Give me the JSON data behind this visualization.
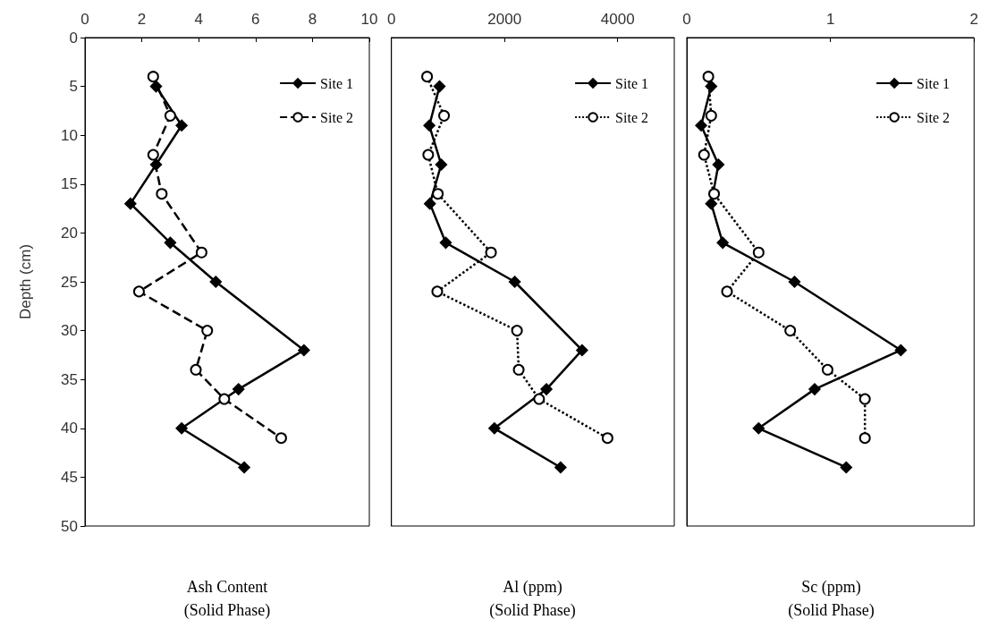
{
  "chart_data": [
    {
      "type": "line",
      "xlabel": "Ash Content\n(Solid Phase)",
      "ylabel": "Depth (cm)",
      "xlim": [
        0,
        10
      ],
      "xticks": [
        0,
        2,
        4,
        6,
        8,
        10
      ],
      "ylim": [
        50,
        0
      ],
      "yticks": [
        0,
        5,
        10,
        15,
        20,
        25,
        30,
        35,
        40,
        45,
        50
      ],
      "grid": false,
      "legend": "top right",
      "series": [
        {
          "name": "Site 1",
          "color": "#000000",
          "marker": "diamond",
          "line_style": "solid",
          "x": [
            2.5,
            3.4,
            2.5,
            1.6,
            3.0,
            4.6,
            7.7,
            5.4,
            3.4,
            5.6
          ],
          "values": [
            5,
            9,
            13,
            17,
            21,
            25,
            32,
            36,
            40,
            44
          ]
        },
        {
          "name": "Site 2",
          "color": "#000000",
          "marker": "circle",
          "line_style": "dashed",
          "x": [
            2.4,
            3.0,
            2.4,
            2.7,
            4.1,
            1.9,
            4.3,
            3.9,
            4.9,
            6.9
          ],
          "values": [
            4,
            8,
            12,
            16,
            22,
            26,
            30,
            34,
            37,
            41
          ]
        }
      ]
    },
    {
      "type": "line",
      "xlabel": "Al (ppm)\n(Solid Phase)",
      "xlim": [
        0,
        5000
      ],
      "xticks": [
        0,
        2000,
        4000
      ],
      "ylim": [
        50,
        0
      ],
      "tick_labels": "x",
      "grid": false,
      "legend": "top right",
      "series": [
        {
          "name": "Site 1",
          "color": "#000000",
          "marker": "diamond",
          "line_style": "solid",
          "x": [
            850,
            670,
            880,
            680,
            960,
            2180,
            3370,
            2740,
            1820,
            2990
          ],
          "values": [
            5,
            9,
            13,
            17,
            21,
            25,
            32,
            36,
            40,
            44
          ]
        },
        {
          "name": "Site 2",
          "color": "#000000",
          "marker": "circle",
          "line_style": "dotted",
          "x": [
            630,
            930,
            650,
            820,
            1760,
            810,
            2220,
            2250,
            2610,
            3820
          ],
          "values": [
            4,
            8,
            12,
            16,
            22,
            26,
            30,
            34,
            37,
            41
          ]
        }
      ]
    },
    {
      "type": "line",
      "xlabel": "Sc (ppm)\n(Solid Phase)",
      "xlim": [
        0,
        2
      ],
      "xticks": [
        0,
        1,
        2
      ],
      "ylim": [
        50,
        0
      ],
      "tick_labels": "x",
      "grid": false,
      "legend": "top right",
      "series": [
        {
          "name": "Site 1",
          "color": "#000000",
          "marker": "diamond",
          "line_style": "solid",
          "x": [
            0.17,
            0.1,
            0.22,
            0.17,
            0.25,
            0.75,
            1.49,
            0.89,
            0.5,
            1.11
          ],
          "values": [
            5,
            9,
            13,
            17,
            21,
            25,
            32,
            36,
            40,
            44
          ]
        },
        {
          "name": "Site 2",
          "color": "#000000",
          "marker": "circle",
          "line_style": "dotted",
          "x": [
            0.15,
            0.17,
            0.12,
            0.19,
            0.5,
            0.28,
            0.72,
            0.98,
            1.24,
            1.24
          ],
          "values": [
            4,
            8,
            12,
            16,
            22,
            26,
            30,
            34,
            37,
            41
          ]
        }
      ]
    }
  ]
}
